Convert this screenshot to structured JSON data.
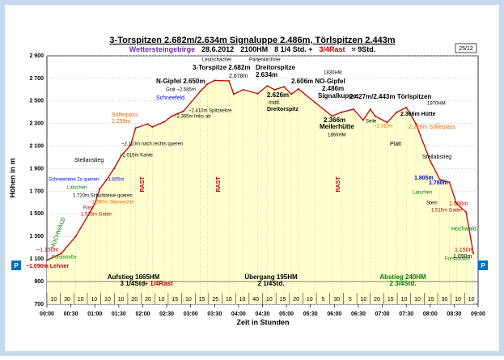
{
  "chart_data": {
    "type": "line",
    "title": "3-Torspitzen 2.682m/2.634m Signaluppe 2.486m, Törlspitzen 2.443m",
    "subtitle": [
      {
        "text": "Wettersteingebirge",
        "color": "#7030a0"
      },
      {
        "text": "28.6.2012",
        "color": "#000000"
      },
      {
        "text": "2100HM",
        "color": "#000000"
      },
      {
        "text": "8 1/4 Std. +",
        "color": "#000000"
      },
      {
        "text": "3/4Rast",
        "color": "#c00000"
      },
      {
        "text": "= 9Std.",
        "color": "#000000"
      }
    ],
    "page_number": "25/12",
    "y_label": "Höhen in m",
    "x_label": "Zeit in Stunden",
    "color": "#c00000",
    "fill": "#ffffd0",
    "grid": true,
    "x": [
      0,
      0.3,
      0.6,
      0.9,
      1.0,
      1.1,
      1.25,
      1.4,
      1.55,
      1.75,
      1.85,
      2.1,
      2.2,
      2.45,
      2.6,
      2.85,
      3.2,
      3.35,
      3.5,
      3.8,
      3.9,
      4.1,
      4.4,
      4.6,
      4.75,
      4.95,
      5.1,
      5.25,
      5.6,
      5.95,
      6.15,
      6.4,
      6.6,
      6.75,
      6.85,
      7.1,
      7.3,
      7.5,
      7.7,
      8.0,
      8.2,
      8.4,
      8.55,
      8.75,
      8.9
    ],
    "values": [
      1090,
      1150,
      1300,
      1515,
      1590,
      1720,
      1805,
      1900,
      2015,
      2110,
      2260,
      2296,
      2270,
      2315,
      2365,
      2410,
      2585,
      2650,
      2682,
      2678,
      2560,
      2600,
      2565,
      2634,
      2600,
      2626,
      2560,
      2606,
      2486,
      2366,
      2400,
      2427,
      2330,
      2427,
      2366,
      2310,
      2400,
      2443,
      2300,
      1970,
      1805,
      1780,
      1590,
      1515,
      1150
    ],
    "xlim": [
      0,
      9
    ],
    "ylim": [
      700,
      2900
    ],
    "yticks": [
      {
        "value": 700,
        "label": "700"
      },
      {
        "value": 900,
        "label": "900"
      },
      {
        "value": 1100,
        "label": "1 100"
      },
      {
        "value": 1300,
        "label": "1 300"
      },
      {
        "value": 1500,
        "label": "1 500"
      },
      {
        "value": 1700,
        "label": "1 700"
      },
      {
        "value": 1900,
        "label": "1 900"
      },
      {
        "value": 2100,
        "label": "2 100"
      },
      {
        "value": 2300,
        "label": "2 300"
      },
      {
        "value": 2500,
        "label": "2 500"
      },
      {
        "value": 2700,
        "label": "2 700"
      },
      {
        "value": 2900,
        "label": "2 900"
      }
    ],
    "xticks": [
      {
        "value": 0,
        "label": "00:00"
      },
      {
        "value": 0.5,
        "label": "00:30"
      },
      {
        "value": 1,
        "label": "01:00"
      },
      {
        "value": 1.5,
        "label": "01:30"
      },
      {
        "value": 2,
        "label": "02:00"
      },
      {
        "value": 2.5,
        "label": "02:30"
      },
      {
        "value": 3,
        "label": "03:00"
      },
      {
        "value": 3.5,
        "label": "03:30"
      },
      {
        "value": 4,
        "label": "04:00"
      },
      {
        "value": 4.5,
        "label": "04:30"
      },
      {
        "value": 5,
        "label": "05:00"
      },
      {
        "value": 5.5,
        "label": "05:30"
      },
      {
        "value": 6,
        "label": "06:00"
      },
      {
        "value": 6.5,
        "label": "06:30"
      },
      {
        "value": 7,
        "label": "07:00"
      },
      {
        "value": 7.5,
        "label": "07:30"
      },
      {
        "value": 8,
        "label": "08:00"
      },
      {
        "value": 8.5,
        "label": "08:30"
      },
      {
        "value": 9,
        "label": "09:00"
      }
    ],
    "segment_minutes": [
      10,
      30,
      10,
      10,
      10,
      10,
      20,
      20,
      10,
      15,
      10,
      15,
      25,
      10,
      10,
      40,
      10,
      15,
      20,
      10,
      5,
      30,
      5,
      10,
      20,
      15,
      10,
      10,
      15,
      30,
      10,
      10
    ],
    "summaries": [
      "Aufstieg 1665HM",
      "3 1/4Std.",
      "+ 1/4Rast",
      "Übergang 195HM",
      "2 1/4Std.",
      "Abstieg 240HM",
      "2 3/4Std."
    ],
    "parking": [
      "P",
      "P"
    ],
    "annotations": [
      "Leutschacher",
      "3-Torspitze 2.682m",
      "N-Gipfel 2.650m",
      "Grat ~2.585m",
      "Schneefeld",
      "~2.410m Spitzkehre",
      "~2.365m links ab",
      "Söllerpass",
      "2.259m",
      "~2.110m nach rechts queren",
      "~2.015m Kante",
      "Steilanstieg",
      "Schneerinne 2x queren",
      "~1.805m",
      "Latschen",
      "1.720m Schutttreise queren",
      "~1.590m Steinrechte",
      "Rast",
      "1.515m Gatter",
      "HOCHWALD",
      "Forststraße",
      "~1.150m",
      "~1.090m Lehner",
      "2.678m",
      "Partenkirchner",
      "Dreitorspitze",
      "2.634m",
      "2.626m",
      "mittl.",
      "Dreitorspitz",
      "2.606m NO-Gipfel",
      "1830HM",
      "2.486m",
      "Signalkuppe",
      "2.366m",
      "Meilerhütte",
      "1860HM",
      "2.427m/2.443m Törlspitzen",
      "1970HM",
      "2.366m Hütte",
      "Seile",
      "~2.310m",
      "2.259m Söllerpass",
      "Platt",
      "Steilabstieg",
      "1.805m",
      "1.780m",
      "Latschen",
      "Stein",
      "1.590m",
      "1.515m Gatter",
      "Hochwald",
      "Forststraße",
      "1.150m",
      "1.090m",
      "RAST",
      "RAST",
      "RAST"
    ]
  }
}
